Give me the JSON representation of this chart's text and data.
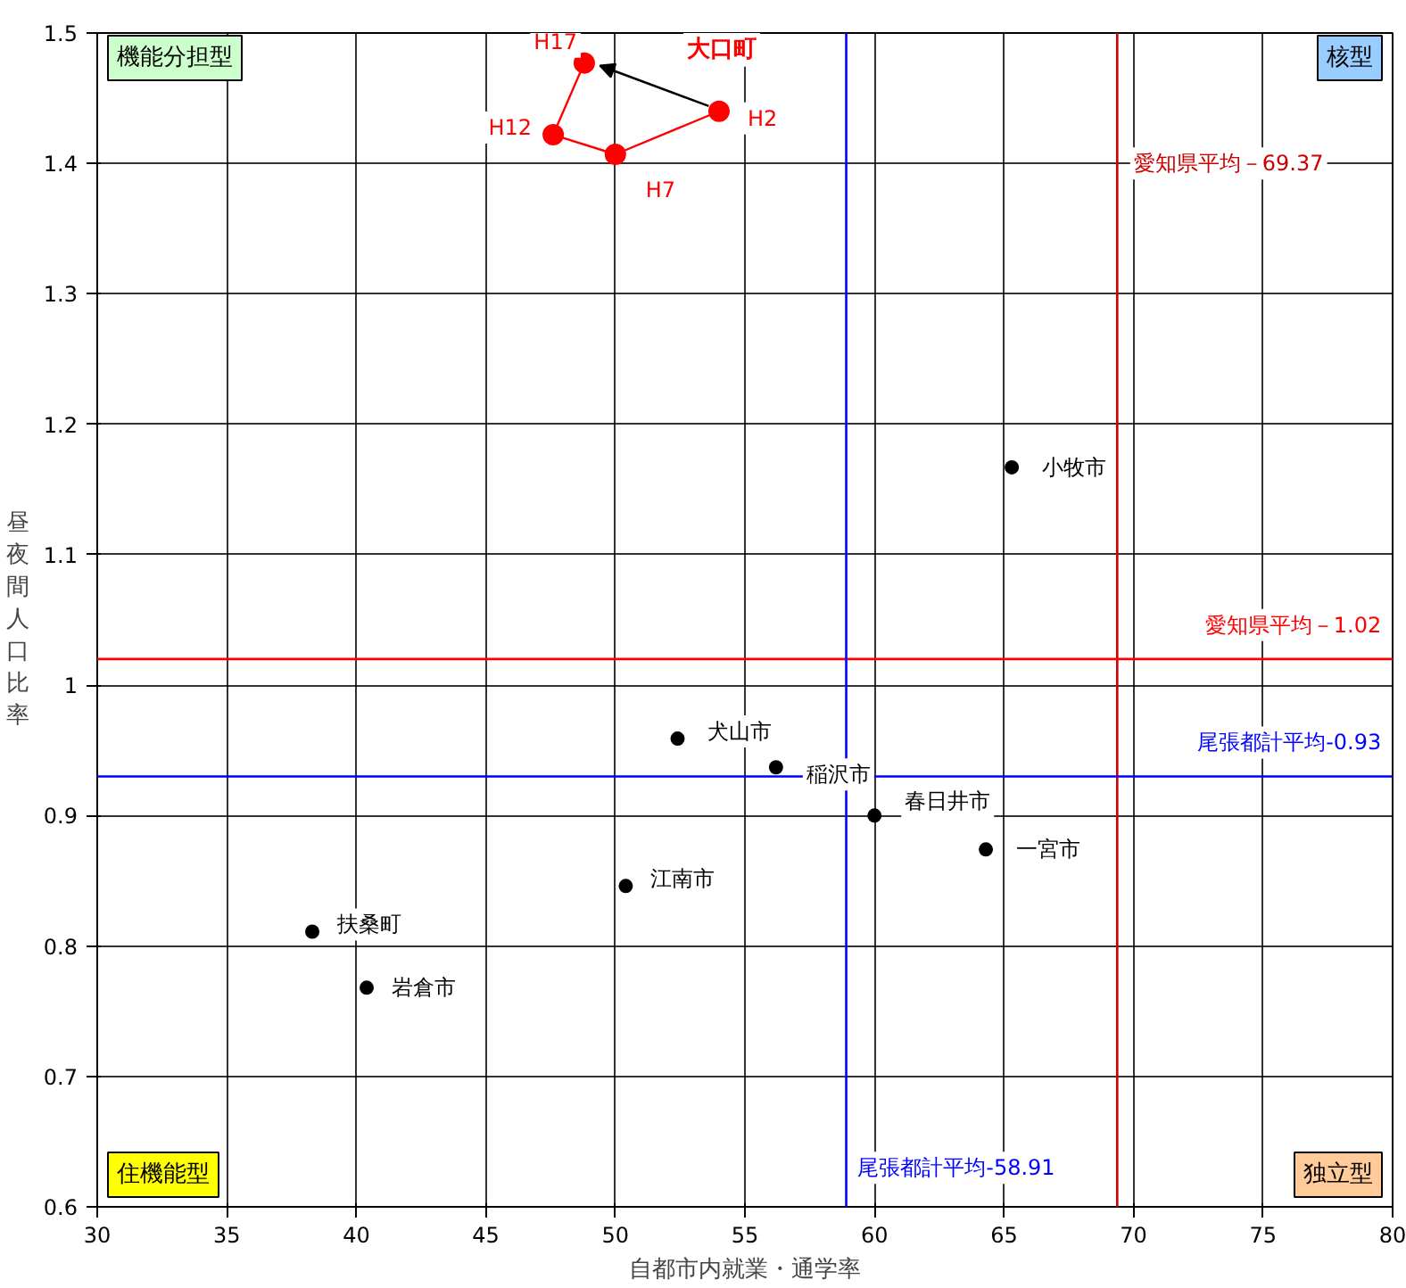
{
  "chart_data": {
    "type": "scatter",
    "xlabel": "自都市内就業・通学率",
    "ylabel": "昼夜間人口比率",
    "xlim": [
      30,
      80
    ],
    "ylim": [
      0.6,
      1.5
    ],
    "xticks": [
      30,
      35,
      40,
      45,
      50,
      55,
      60,
      65,
      70,
      75,
      80
    ],
    "yticks": [
      0.6,
      0.7,
      0.8,
      0.9,
      1,
      1.1,
      1.2,
      1.3,
      1.4,
      1.5
    ],
    "grid": true,
    "marker": "circle",
    "series": [
      {
        "color": "#000000",
        "x": [
          65.3,
          52.4,
          56.2,
          60.0,
          64.3,
          50.4,
          38.3,
          40.4
        ],
        "values": [
          1.167,
          0.959,
          0.937,
          0.9,
          0.874,
          0.846,
          0.811,
          0.768
        ]
      },
      {
        "type": "line",
        "name": "大口町",
        "color": "#ff0000",
        "x": [
          54.0,
          50.0,
          47.6,
          48.8
        ],
        "values": [
          1.44,
          1.407,
          1.422,
          1.477
        ]
      }
    ],
    "ref_lines": [
      {
        "axis": "x",
        "value": 69.37,
        "label": "愛知県平均－69.37",
        "color": "#cc0000"
      },
      {
        "axis": "y",
        "value": 1.02,
        "label": "愛知県平均－1.02",
        "color": "#ff0000"
      },
      {
        "axis": "y",
        "value": 0.93,
        "label": "尾張都計平均-0.93",
        "color": "#0000ff"
      },
      {
        "axis": "x",
        "value": 58.91,
        "label": "尾張都計平均-58.91",
        "color": "#0000ff"
      }
    ],
    "annotations": [
      {
        "text": "小牧市",
        "x": 65.3,
        "y": 1.167
      },
      {
        "text": "犬山市",
        "x": 52.4,
        "y": 0.959
      },
      {
        "text": "稲沢市",
        "x": 56.2,
        "y": 0.937
      },
      {
        "text": "春日井市",
        "x": 60.0,
        "y": 0.9
      },
      {
        "text": "一宮市",
        "x": 64.3,
        "y": 0.874
      },
      {
        "text": "江南市",
        "x": 50.4,
        "y": 0.846
      },
      {
        "text": "扶桑町",
        "x": 38.3,
        "y": 0.811
      },
      {
        "text": "岩倉市",
        "x": 40.4,
        "y": 0.768
      },
      {
        "text": "H2",
        "x": 54.0,
        "y": 1.44
      },
      {
        "text": "H7",
        "x": 50.0,
        "y": 1.407
      },
      {
        "text": "H12",
        "x": 47.6,
        "y": 1.422
      },
      {
        "text": "H17",
        "x": 48.8,
        "y": 1.477
      },
      "機能分担型",
      "核型",
      "住機能型",
      "独立型"
    ]
  }
}
